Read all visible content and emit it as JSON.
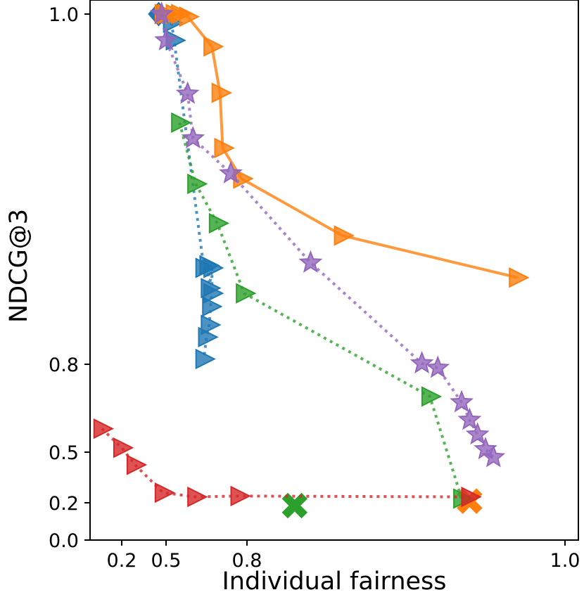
{
  "chart_data": {
    "type": "scatter",
    "title": "",
    "xlabel": "Individual fairness",
    "ylabel": "NDCG@3",
    "x_scale": "piecewise-nonlinear",
    "y_scale": "piecewise-nonlinear",
    "xticks": [
      {
        "value": 0.2,
        "label": "0.2"
      },
      {
        "value": 0.5,
        "label": "0.5"
      },
      {
        "value": 0.8,
        "label": "0.8"
      },
      {
        "value": 1.0,
        "label": "1.0"
      }
    ],
    "yticks": [
      {
        "value": 0.0,
        "label": "0.0"
      },
      {
        "value": 0.2,
        "label": "0.2"
      },
      {
        "value": 0.5,
        "label": "0.5"
      },
      {
        "value": 0.8,
        "label": "0.8"
      },
      {
        "value": 1.0,
        "label": "1.0"
      }
    ],
    "grid": false,
    "legend": "none",
    "series": [
      {
        "name": "blue",
        "color": "#1f77b4",
        "line": "dotted",
        "marker": "triangle-right",
        "points": [
          [
            0.52,
            0.995
          ],
          [
            0.53,
            0.985
          ],
          [
            0.64,
            0.855
          ],
          [
            0.655,
            0.8565
          ],
          [
            0.66,
            0.8435
          ],
          [
            0.67,
            0.855
          ],
          [
            0.67,
            0.8405
          ],
          [
            0.665,
            0.833
          ],
          [
            0.66,
            0.8225
          ],
          [
            0.65,
            0.8155
          ],
          [
            0.64,
            0.803
          ]
        ]
      },
      {
        "name": "blue-end",
        "color": "#1f77b4",
        "line": "none",
        "marker": "thick-diamond",
        "points": [
          [
            0.45,
            1.0
          ]
        ]
      },
      {
        "name": "orange",
        "color": "#ff7f0e",
        "line": "solid",
        "marker": "triangle-right",
        "points": [
          [
            0.48,
            1.0
          ],
          [
            0.5,
            1.0
          ],
          [
            0.53,
            1.0
          ],
          [
            0.55,
            1.0
          ],
          [
            0.58,
            0.9985
          ],
          [
            0.67,
            0.9815
          ],
          [
            0.7,
            0.955
          ],
          [
            0.71,
            0.9235
          ],
          [
            0.78,
            0.906
          ],
          [
            0.86,
            0.8735
          ],
          [
            0.97,
            0.8495
          ]
        ]
      },
      {
        "name": "orange-end",
        "color": "#ff7f0e",
        "line": "none",
        "marker": "thick-x",
        "points": [
          [
            0.94,
            0.21
          ]
        ]
      },
      {
        "name": "purple",
        "color": "#9467bd",
        "line": "dotted",
        "marker": "star",
        "points": [
          [
            0.47,
            1.0
          ],
          [
            0.5,
            0.985
          ],
          [
            0.58,
            0.9545
          ],
          [
            0.6,
            0.929
          ],
          [
            0.74,
            0.909
          ],
          [
            0.84,
            0.858
          ],
          [
            0.91,
            0.8005
          ],
          [
            0.92,
            0.7875
          ],
          [
            0.935,
            0.67
          ],
          [
            0.94,
            0.61
          ],
          [
            0.945,
            0.56
          ],
          [
            0.95,
            0.51
          ],
          [
            0.955,
            0.47
          ]
        ]
      },
      {
        "name": "green",
        "color": "#2ca02c",
        "line": "dotted",
        "marker": "triangle-right",
        "points": [
          [
            0.55,
            0.938
          ],
          [
            0.61,
            0.903
          ],
          [
            0.69,
            0.8805
          ],
          [
            0.79,
            0.8405
          ],
          [
            0.915,
            0.69
          ],
          [
            0.935,
            0.225
          ]
        ]
      },
      {
        "name": "green-end",
        "color": "#2ca02c",
        "line": "none",
        "marker": "thick-x",
        "points": [
          [
            0.83,
            0.185
          ]
        ]
      },
      {
        "name": "red",
        "color": "#d62728",
        "line": "dotted",
        "marker": "triangle-right",
        "points": [
          [
            0.15,
            0.58
          ],
          [
            0.2,
            0.515
          ],
          [
            0.29,
            0.425
          ],
          [
            0.48,
            0.26
          ],
          [
            0.61,
            0.235
          ],
          [
            0.77,
            0.24
          ],
          [
            0.94,
            0.235
          ]
        ]
      }
    ]
  }
}
